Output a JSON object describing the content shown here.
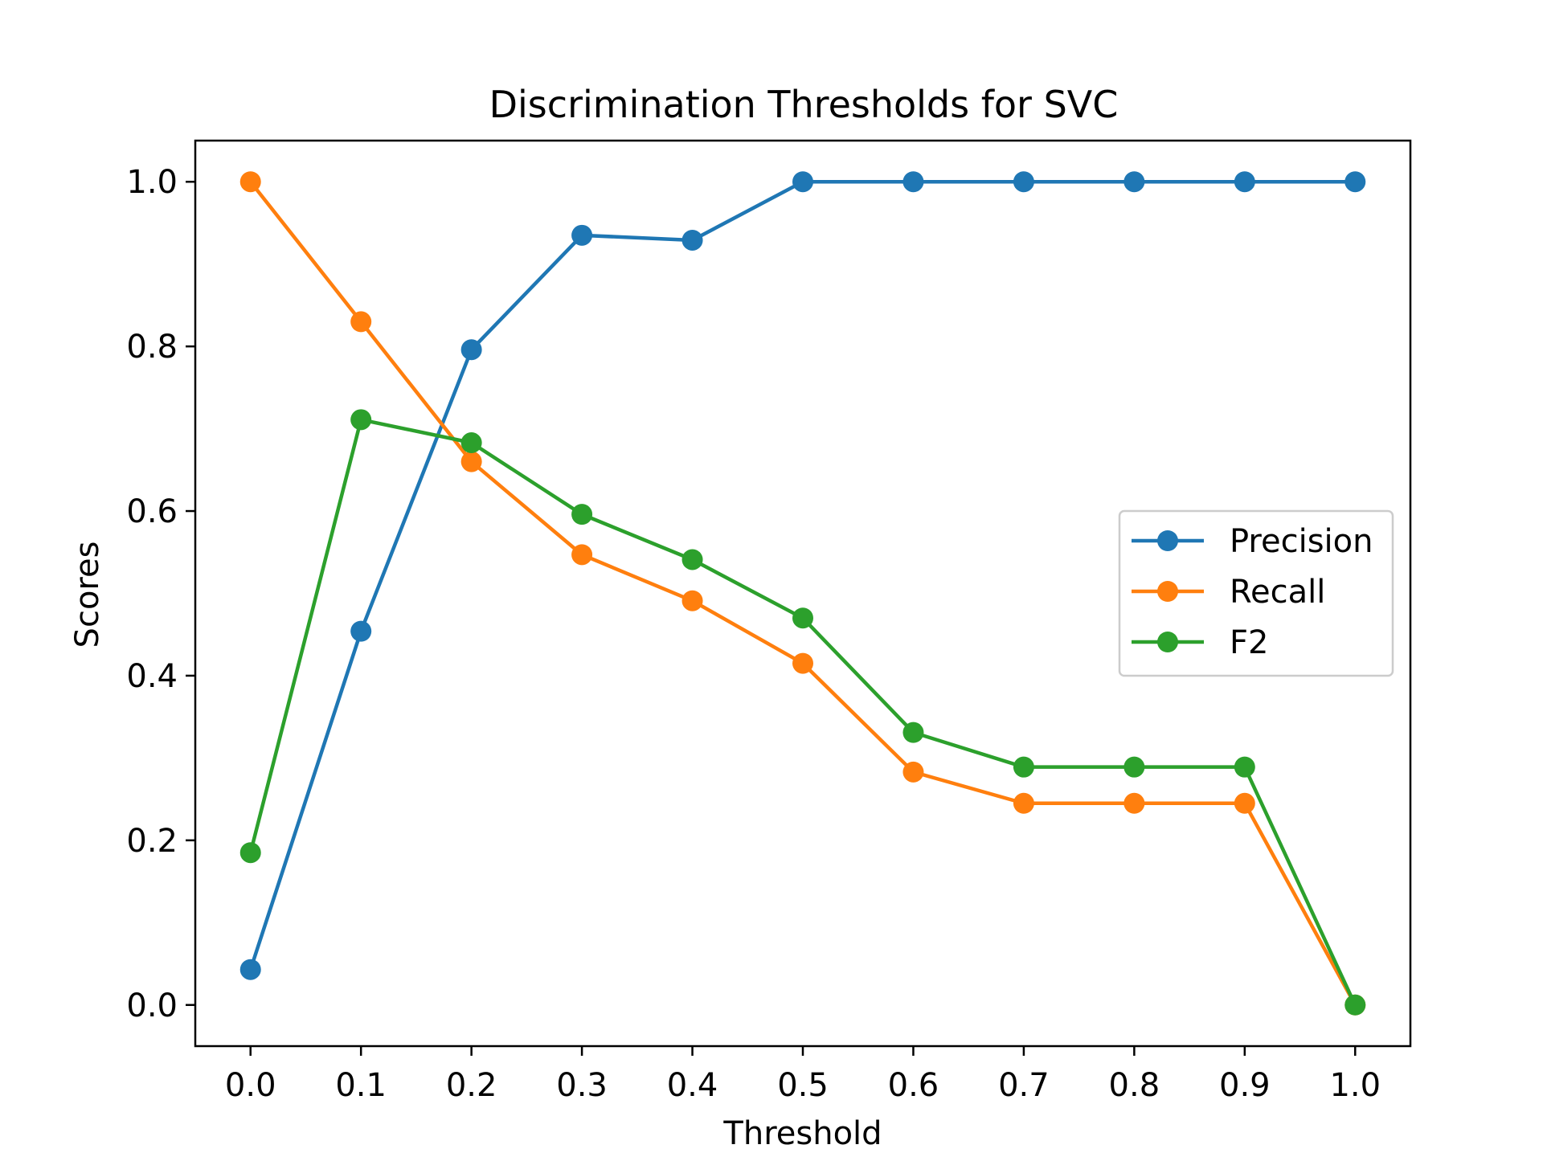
{
  "chart_data": {
    "type": "line",
    "title": "Discrimination Thresholds for SVC",
    "xlabel": "Threshold",
    "ylabel": "Scores",
    "x": [
      0.0,
      0.1,
      0.2,
      0.3,
      0.4,
      0.5,
      0.6,
      0.7,
      0.8,
      0.9,
      1.0
    ],
    "xlim": [
      -0.05,
      1.05
    ],
    "ylim": [
      -0.05,
      1.05
    ],
    "xticks": [
      "0.0",
      "0.1",
      "0.2",
      "0.3",
      "0.4",
      "0.5",
      "0.6",
      "0.7",
      "0.8",
      "0.9",
      "1.0"
    ],
    "yticks": [
      "0.0",
      "0.2",
      "0.4",
      "0.6",
      "0.8",
      "1.0"
    ],
    "grid": false,
    "legend_position": "center-right",
    "series": [
      {
        "name": "Precision",
        "color": "#1f77b4",
        "marker": "circle",
        "values": [
          0.043,
          0.454,
          0.796,
          0.935,
          0.929,
          1.0,
          1.0,
          1.0,
          1.0,
          1.0,
          1.0
        ]
      },
      {
        "name": "Recall",
        "color": "#ff7f0e",
        "marker": "circle",
        "values": [
          1.0,
          0.83,
          0.66,
          0.547,
          0.491,
          0.415,
          0.283,
          0.245,
          0.245,
          0.245,
          0.0
        ]
      },
      {
        "name": "F2",
        "color": "#2ca02c",
        "marker": "circle",
        "values": [
          0.185,
          0.711,
          0.683,
          0.596,
          0.541,
          0.47,
          0.331,
          0.289,
          0.289,
          0.289,
          0.0
        ]
      }
    ]
  }
}
